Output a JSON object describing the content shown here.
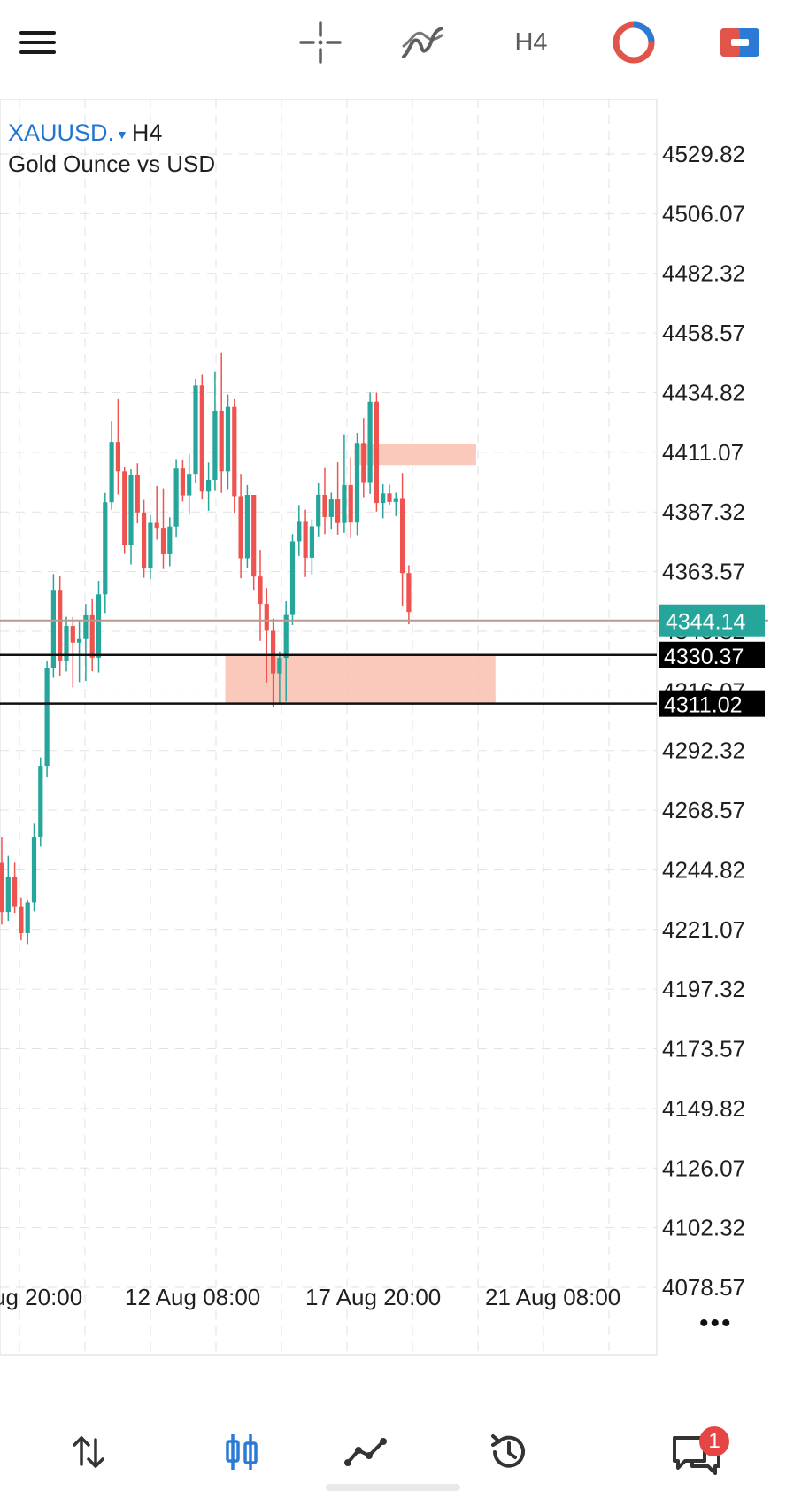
{
  "toolbar": {
    "timeframe": "H4"
  },
  "symbol": {
    "name": "XAUUSD.",
    "timeframe": "H4",
    "description": "Gold Ounce vs USD"
  },
  "colors": {
    "bull": "#26a69a",
    "bear": "#ef5350",
    "zone": "#f9c0b0",
    "bid_line": "#b89a8c",
    "bid_label_bg": "#26a69a",
    "level_label_bg": "#000000",
    "grid": "#e2e2e2",
    "accent": "#2276d2"
  },
  "chart_data": {
    "type": "candlestick",
    "y_axis_ticks": [
      "4529.82",
      "4506.07",
      "4482.32",
      "4458.57",
      "4434.82",
      "4411.07",
      "4387.32",
      "4363.57",
      "4340.82",
      "4316.07",
      "4292.32",
      "4268.57",
      "4244.82",
      "4221.07",
      "4197.32",
      "4173.57",
      "4149.82",
      "4126.07",
      "4102.32",
      "4078.57"
    ],
    "x_axis_ticks": [
      "ug 20:00",
      "12 Aug 08:00",
      "17 Aug 20:00",
      "21 Aug 08:00"
    ],
    "ylim": [
      4064.67,
      4546.13
    ],
    "bid": {
      "label": "4344.14",
      "value": 4344.14
    },
    "horizontal_lines": [
      {
        "label": "4330.37",
        "value": 4330.37
      },
      {
        "label": "4311.02",
        "value": 4311.02
      }
    ],
    "zones": [
      {
        "from_index": 35,
        "to_index": 76,
        "top": 4330.37,
        "bottom": 4311.02
      },
      {
        "from_index": 55,
        "to_index": 73,
        "top": 4414.5,
        "bottom": 4406.0
      }
    ],
    "candles": [
      [
        4247.6,
        4258.0,
        4223.0,
        4228.0
      ],
      [
        4228.0,
        4250.4,
        4224.5,
        4242.0
      ],
      [
        4242.0,
        4247.7,
        4227.7,
        4230.3
      ],
      [
        4230.3,
        4233.8,
        4216.7,
        4219.6
      ],
      [
        4219.6,
        4233.0,
        4215.2,
        4231.8
      ],
      [
        4231.8,
        4263.2,
        4228.3,
        4258.0
      ],
      [
        4258.0,
        4289.5,
        4254.0,
        4286.2
      ],
      [
        4286.2,
        4327.8,
        4281.6,
        4325.0
      ],
      [
        4325.0,
        4362.6,
        4321.3,
        4356.3
      ],
      [
        4356.3,
        4362.0,
        4322.0,
        4328.0
      ],
      [
        4328.0,
        4345.6,
        4323.8,
        4341.9
      ],
      [
        4341.9,
        4345.5,
        4317.4,
        4335.3
      ],
      [
        4335.3,
        4344.0,
        4319.6,
        4336.7
      ],
      [
        4336.7,
        4350.7,
        4320.1,
        4346.2
      ],
      [
        4346.2,
        4352.9,
        4323.9,
        4329.3
      ],
      [
        4329.3,
        4359.9,
        4323.4,
        4354.5
      ],
      [
        4354.5,
        4394.9,
        4347.1,
        4391.2
      ],
      [
        4391.2,
        4423.3,
        4388.2,
        4415.2
      ],
      [
        4415.2,
        4432.2,
        4394.3,
        4403.5
      ],
      [
        4403.5,
        4405.2,
        4370.6,
        4374.1
      ],
      [
        4374.1,
        4404.3,
        4366.4,
        4402.2
      ],
      [
        4402.2,
        4406.7,
        4382.8,
        4387.1
      ],
      [
        4387.1,
        4392.1,
        4361.1,
        4364.9
      ],
      [
        4364.9,
        4386.1,
        4360.6,
        4383.0
      ],
      [
        4383.0,
        4397.7,
        4376.3,
        4381.0
      ],
      [
        4381.0,
        4396.7,
        4364.6,
        4370.5
      ],
      [
        4370.5,
        4385.2,
        4365.7,
        4381.5
      ],
      [
        4381.5,
        4408.4,
        4377.1,
        4404.6
      ],
      [
        4404.6,
        4408.1,
        4391.5,
        4393.9
      ],
      [
        4393.9,
        4410.4,
        4386.8,
        4402.5
      ],
      [
        4402.5,
        4440.3,
        4398.8,
        4437.7
      ],
      [
        4437.7,
        4442.2,
        4392.3,
        4395.4
      ],
      [
        4395.4,
        4407.0,
        4387.8,
        4400.1
      ],
      [
        4400.1,
        4443.2,
        4396.0,
        4427.6
      ],
      [
        4427.6,
        4450.6,
        4394.9,
        4403.5
      ],
      [
        4403.5,
        4434.1,
        4396.4,
        4429.1
      ],
      [
        4429.1,
        4432.2,
        4387.0,
        4393.6
      ],
      [
        4393.6,
        4402.5,
        4360.9,
        4368.9
      ],
      [
        4368.9,
        4398.0,
        4365.0,
        4394.1
      ],
      [
        4394.1,
        4394.1,
        4356.3,
        4361.6
      ],
      [
        4361.6,
        4372.2,
        4336.0,
        4350.7
      ],
      [
        4350.7,
        4357.0,
        4319.4,
        4340.0
      ],
      [
        4340.0,
        4344.8,
        4309.6,
        4323.0
      ],
      [
        4323.0,
        4331.8,
        4310.9,
        4329.2
      ],
      [
        4329.2,
        4351.8,
        4311.8,
        4346.3
      ],
      [
        4346.3,
        4378.5,
        4342.3,
        4375.6
      ],
      [
        4375.6,
        4390.1,
        4369.8,
        4383.4
      ],
      [
        4383.4,
        4388.2,
        4361.4,
        4369.1
      ],
      [
        4369.1,
        4384.4,
        4362.4,
        4381.6
      ],
      [
        4381.6,
        4398.9,
        4377.6,
        4394.1
      ],
      [
        4394.1,
        4404.8,
        4378.5,
        4385.3
      ],
      [
        4385.3,
        4395.0,
        4380.3,
        4392.3
      ],
      [
        4392.3,
        4407.1,
        4378.3,
        4382.9
      ],
      [
        4382.9,
        4418.2,
        4379.0,
        4398.0
      ],
      [
        4398.0,
        4409.0,
        4376.9,
        4383.1
      ],
      [
        4383.1,
        4418.8,
        4378.1,
        4414.8
      ],
      [
        4414.8,
        4424.7,
        4393.2,
        4399.2
      ],
      [
        4399.2,
        4434.8,
        4394.5,
        4431.2
      ],
      [
        4431.2,
        4434.8,
        4387.5,
        4390.9
      ],
      [
        4390.9,
        4398.3,
        4384.8,
        4394.7
      ],
      [
        4394.7,
        4398.2,
        4390.2,
        4391.3
      ],
      [
        4391.3,
        4395.0,
        4385.7,
        4392.5
      ],
      [
        4392.5,
        4402.8,
        4349.7,
        4363.0
      ],
      [
        4363.0,
        4366.1,
        4342.6,
        4347.5
      ]
    ]
  },
  "more_label": "•••",
  "notification": {
    "count": "1"
  }
}
